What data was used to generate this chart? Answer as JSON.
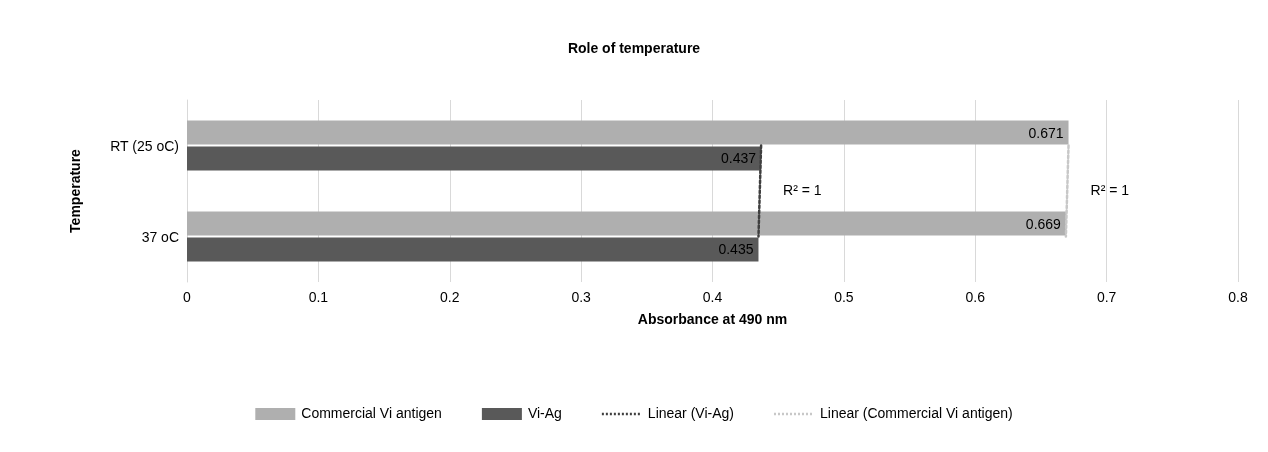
{
  "chart_data": {
    "type": "bar",
    "orientation": "horizontal",
    "title": "Role of temperature",
    "xlabel": "Absorbance at 490 nm",
    "ylabel": "Temperature",
    "categories": [
      "RT (25 oC)",
      "37 oC"
    ],
    "series": [
      {
        "name": "Commercial Vi antigen",
        "color": "#afafaf",
        "values": [
          0.671,
          0.669
        ],
        "value_labels": [
          "0.671",
          "0.669"
        ]
      },
      {
        "name": "Vi-Ag",
        "color": "#595959",
        "values": [
          0.437,
          0.435
        ],
        "value_labels": [
          "0.437",
          "0.435"
        ]
      },
      {
        "name": "Linear (Vi-Ag)",
        "type": "line",
        "color": "#3f3f3f",
        "values": [
          0.437,
          0.435
        ],
        "line_style": "dotted"
      },
      {
        "name": "Linear (Commercial Vi antigen)",
        "type": "line",
        "color": "#c8c8c8",
        "values": [
          0.671,
          0.669
        ],
        "line_style": "dotted"
      }
    ],
    "annotations": [
      {
        "text": "R² = 1",
        "x": 0.437
      },
      {
        "text": "R² = 1",
        "x": 0.671
      }
    ],
    "xlim": [
      0,
      0.8
    ],
    "xticks": [
      0,
      0.1,
      0.2,
      0.3,
      0.4,
      0.5,
      0.6,
      0.7,
      0.8
    ],
    "grid": "x",
    "legend": "bottom",
    "marker": "none"
  }
}
